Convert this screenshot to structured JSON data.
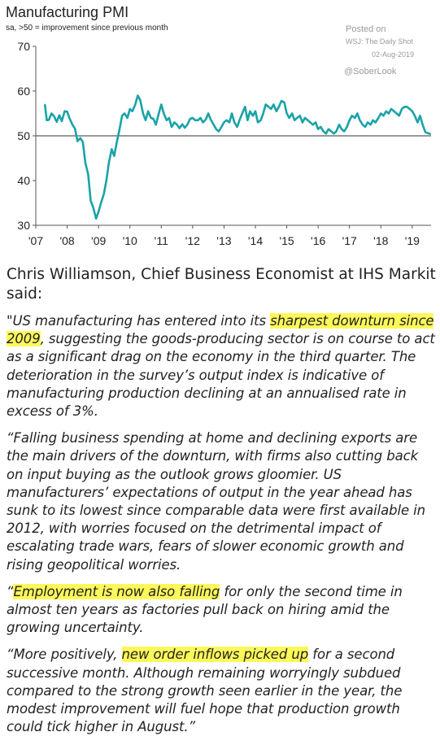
{
  "chart_data": {
    "type": "line",
    "title": "Manufacturing PMI",
    "subtitle": "sa, >50 = improvement since previous month",
    "ylim": [
      30,
      70
    ],
    "xlim": [
      2007,
      2019.6
    ],
    "yticks": [
      30,
      40,
      50,
      60,
      70
    ],
    "xticks": [
      {
        "label": "'07",
        "x": 2007
      },
      {
        "label": "'08",
        "x": 2008
      },
      {
        "label": "'09",
        "x": 2009
      },
      {
        "label": "'10",
        "x": 2010
      },
      {
        "label": "'11",
        "x": 2011
      },
      {
        "label": "'12",
        "x": 2012
      },
      {
        "label": "'13",
        "x": 2013
      },
      {
        "label": "'14",
        "x": 2014
      },
      {
        "label": "'15",
        "x": 2015
      },
      {
        "label": "'16",
        "x": 2016
      },
      {
        "label": "'17",
        "x": 2017
      },
      {
        "label": "'18",
        "x": 2018
      },
      {
        "label": "'19",
        "x": 2019
      }
    ],
    "reference_line": 50,
    "grid": false,
    "line_color": "#1aa3a7",
    "series": [
      {
        "points": [
          [
            2007.29,
            57.0
          ],
          [
            2007.35,
            53.5
          ],
          [
            2007.42,
            53.6
          ],
          [
            2007.5,
            55.0
          ],
          [
            2007.58,
            54.4
          ],
          [
            2007.67,
            53.1
          ],
          [
            2007.75,
            54.6
          ],
          [
            2007.83,
            53.3
          ],
          [
            2007.92,
            55.5
          ],
          [
            2008.0,
            55.4
          ],
          [
            2008.08,
            53.8
          ],
          [
            2008.17,
            52.5
          ],
          [
            2008.25,
            51.6
          ],
          [
            2008.33,
            48.8
          ],
          [
            2008.42,
            49.5
          ],
          [
            2008.5,
            48.6
          ],
          [
            2008.58,
            44.0
          ],
          [
            2008.67,
            41.4
          ],
          [
            2008.75,
            35.5
          ],
          [
            2008.83,
            34.0
          ],
          [
            2008.92,
            31.5
          ],
          [
            2009.0,
            33.0
          ],
          [
            2009.08,
            35.0
          ],
          [
            2009.17,
            37.0
          ],
          [
            2009.25,
            40.0
          ],
          [
            2009.33,
            44.0
          ],
          [
            2009.42,
            47.0
          ],
          [
            2009.5,
            45.5
          ],
          [
            2009.58,
            48.5
          ],
          [
            2009.67,
            51.5
          ],
          [
            2009.75,
            54.5
          ],
          [
            2009.83,
            55.0
          ],
          [
            2009.92,
            54.0
          ],
          [
            2010.0,
            56.0
          ],
          [
            2010.08,
            55.5
          ],
          [
            2010.17,
            57.0
          ],
          [
            2010.25,
            59.0
          ],
          [
            2010.33,
            58.0
          ],
          [
            2010.42,
            55.0
          ],
          [
            2010.5,
            53.5
          ],
          [
            2010.58,
            55.5
          ],
          [
            2010.67,
            54.0
          ],
          [
            2010.75,
            53.8
          ],
          [
            2010.83,
            52.5
          ],
          [
            2010.92,
            55.0
          ],
          [
            2011.0,
            57.0
          ],
          [
            2011.08,
            55.0
          ],
          [
            2011.17,
            53.5
          ],
          [
            2011.25,
            54.0
          ],
          [
            2011.33,
            52.0
          ],
          [
            2011.42,
            53.0
          ],
          [
            2011.5,
            52.5
          ],
          [
            2011.58,
            51.7
          ],
          [
            2011.67,
            52.6
          ],
          [
            2011.75,
            51.8
          ],
          [
            2011.83,
            52.5
          ],
          [
            2011.92,
            53.8
          ],
          [
            2012.0,
            54.0
          ],
          [
            2012.08,
            53.5
          ],
          [
            2012.17,
            53.5
          ],
          [
            2012.25,
            54.0
          ],
          [
            2012.33,
            53.0
          ],
          [
            2012.42,
            53.7
          ],
          [
            2012.5,
            55.0
          ],
          [
            2012.58,
            53.6
          ],
          [
            2012.67,
            52.5
          ],
          [
            2012.75,
            51.5
          ],
          [
            2012.83,
            51.0
          ],
          [
            2012.92,
            52.0
          ],
          [
            2013.0,
            53.0
          ],
          [
            2013.08,
            53.5
          ],
          [
            2013.17,
            53.0
          ],
          [
            2013.25,
            55.0
          ],
          [
            2013.33,
            53.0
          ],
          [
            2013.42,
            52.0
          ],
          [
            2013.5,
            53.6
          ],
          [
            2013.58,
            55.0
          ],
          [
            2013.67,
            56.5
          ],
          [
            2013.75,
            53.5
          ],
          [
            2013.83,
            55.5
          ],
          [
            2013.92,
            54.5
          ],
          [
            2014.0,
            55.5
          ],
          [
            2014.08,
            53.0
          ],
          [
            2014.17,
            53.5
          ],
          [
            2014.25,
            55.0
          ],
          [
            2014.33,
            57.0
          ],
          [
            2014.42,
            56.5
          ],
          [
            2014.5,
            56.0
          ],
          [
            2014.58,
            57.0
          ],
          [
            2014.67,
            55.5
          ],
          [
            2014.75,
            56.5
          ],
          [
            2014.83,
            57.8
          ],
          [
            2014.92,
            57.5
          ],
          [
            2015.0,
            55.0
          ],
          [
            2015.08,
            54.0
          ],
          [
            2015.17,
            55.0
          ],
          [
            2015.25,
            53.5
          ],
          [
            2015.33,
            54.0
          ],
          [
            2015.42,
            54.5
          ],
          [
            2015.5,
            53.0
          ],
          [
            2015.58,
            54.0
          ],
          [
            2015.67,
            53.5
          ],
          [
            2015.75,
            53.0
          ],
          [
            2015.83,
            52.5
          ],
          [
            2015.92,
            53.0
          ],
          [
            2016.0,
            51.5
          ],
          [
            2016.08,
            52.0
          ],
          [
            2016.17,
            51.0
          ],
          [
            2016.25,
            50.5
          ],
          [
            2016.33,
            51.5
          ],
          [
            2016.42,
            51.0
          ],
          [
            2016.5,
            50.5
          ],
          [
            2016.58,
            51.0
          ],
          [
            2016.67,
            52.5
          ],
          [
            2016.75,
            51.5
          ],
          [
            2016.83,
            51.0
          ],
          [
            2016.92,
            52.0
          ],
          [
            2017.0,
            53.5
          ],
          [
            2017.08,
            54.5
          ],
          [
            2017.17,
            54.0
          ],
          [
            2017.25,
            55.0
          ],
          [
            2017.33,
            53.5
          ],
          [
            2017.42,
            52.5
          ],
          [
            2017.5,
            52.0
          ],
          [
            2017.58,
            53.0
          ],
          [
            2017.67,
            52.5
          ],
          [
            2017.75,
            53.5
          ],
          [
            2017.83,
            53.0
          ],
          [
            2017.92,
            54.0
          ],
          [
            2018.0,
            55.0
          ],
          [
            2018.08,
            54.5
          ],
          [
            2018.17,
            55.5
          ],
          [
            2018.25,
            55.0
          ],
          [
            2018.33,
            56.0
          ],
          [
            2018.42,
            55.5
          ],
          [
            2018.5,
            55.0
          ],
          [
            2018.58,
            54.5
          ],
          [
            2018.67,
            56.0
          ],
          [
            2018.75,
            56.5
          ],
          [
            2018.83,
            56.5
          ],
          [
            2018.92,
            56.0
          ],
          [
            2019.0,
            55.5
          ],
          [
            2019.08,
            54.5
          ],
          [
            2019.17,
            53.0
          ],
          [
            2019.25,
            54.5
          ],
          [
            2019.33,
            52.5
          ],
          [
            2019.42,
            50.8
          ],
          [
            2019.5,
            50.6
          ],
          [
            2019.58,
            50.4
          ]
        ]
      }
    ]
  },
  "credit": {
    "posted_on": "Posted on",
    "source": "WSJ: The Daily Shot",
    "date": "02-Aug-2019",
    "handle": "@SoberLook"
  },
  "article": {
    "speaker_line1": "Chris Williamson, Chief Business Economist at IHS Markit",
    "speaker_line2": "said:",
    "p1_a": "\"US manufacturing has entered into its ",
    "p1_hl": "sharpest downturn since 2009",
    "p1_b": ", suggesting the goods-producing sector is on course to act as a significant drag on the economy in the third quarter. The deterioration in the survey’s output index is indicative of manufacturing production declining at an annualised rate in excess of 3%.",
    "p2": "“Falling business spending at home and declining exports are the main drivers of the downturn, with firms also cutting back on input buying as the outlook grows gloomier. US manufacturers’ expectations of output in the year ahead has sunk to its lowest since comparable data were first available in 2012, with worries focused on the detrimental impact of escalating trade wars, fears of slower economic growth and rising geopolitical worries.",
    "p3_a": "“",
    "p3_hl": "Employment is now also falling",
    "p3_b": " for only the second time in almost ten years as factories pull back on hiring amid the growing uncertainty.",
    "p4_a": "“More positively, ",
    "p4_hl": "new order inflows picked up",
    "p4_b": " for a second successive month. Although  remaining worryingly subdued compared to the strong growth seen earlier in the year, the modest improvement will fuel hope that production growth could tick higher in August.”"
  }
}
